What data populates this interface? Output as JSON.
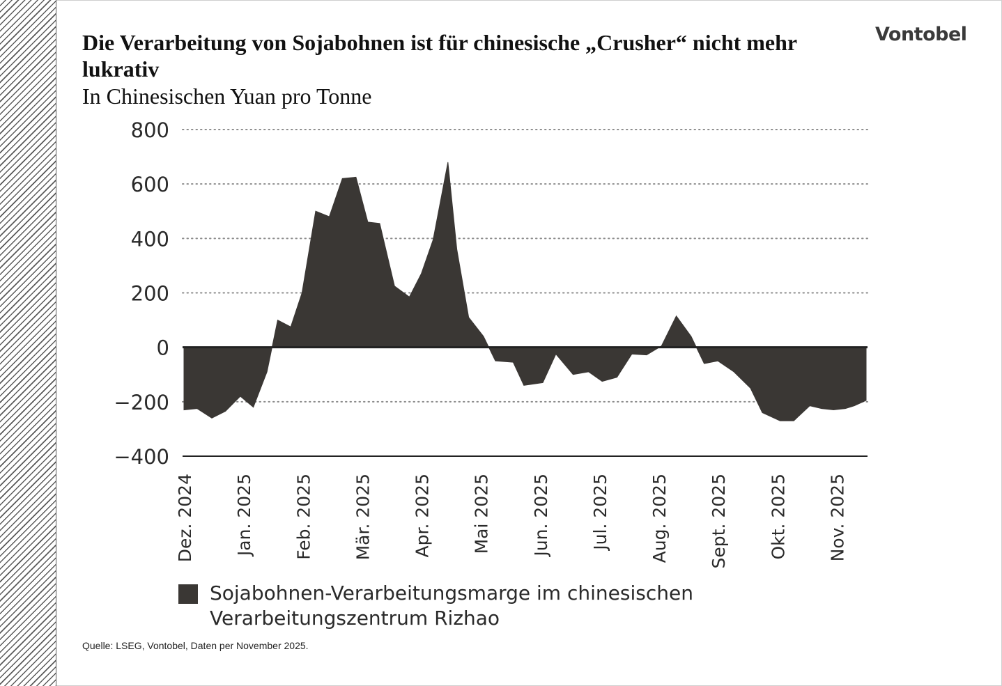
{
  "header": {
    "title": "Die Verarbeitung von Sojabohnen ist für chinesische „Crusher“ nicht mehr lukrativ",
    "subtitle": "In Chinesischen Yuan pro Tonne",
    "logo": "Vontobel"
  },
  "footer": {
    "source": "Quelle: LSEG, Vontobel, Daten per November 2025."
  },
  "colors": {
    "area": "#3a3734",
    "grid": "#8c8c8c",
    "axis": "#222222"
  },
  "chart_data": {
    "type": "area",
    "ylim": [
      -400,
      800
    ],
    "yticks": [
      800,
      600,
      400,
      200,
      0,
      -200,
      -400
    ],
    "ytick_labels": [
      "800",
      "600",
      "400",
      "200",
      "0",
      "−200",
      "−400"
    ],
    "xlim": [
      0,
      11.5
    ],
    "xticks": [
      0,
      1,
      2,
      3,
      4,
      5,
      6,
      7,
      8,
      9,
      10,
      11
    ],
    "xtick_labels": [
      "Dez. 2024",
      "Jan. 2025",
      "Feb. 2025",
      "Mär. 2025",
      "Apr. 2025",
      "Mai 2025",
      "Jun. 2025",
      "Jul. 2025",
      "Aug. 2025",
      "Sept. 2025",
      "Okt. 2025",
      "Nov. 2025"
    ],
    "grid": "horizontal dotted",
    "legend_position": "bottom-left",
    "series": [
      {
        "name": "Sojabohnen-Verarbeitungsmarge im chinesischen Verarbeitungszentrum Rizhao",
        "x": [
          0,
          0.22,
          0.47,
          0.7,
          0.95,
          1.17,
          1.4,
          1.58,
          1.8,
          1.99,
          2.22,
          2.45,
          2.67,
          2.9,
          3.1,
          3.3,
          3.55,
          3.8,
          4.0,
          4.2,
          4.45,
          4.6,
          4.8,
          5.05,
          5.25,
          5.55,
          5.73,
          6.05,
          6.27,
          6.56,
          6.82,
          7.05,
          7.3,
          7.55,
          7.8,
          8.05,
          8.3,
          8.55,
          8.77,
          9.0,
          9.27,
          9.55,
          9.75,
          10.05,
          10.28,
          10.55,
          10.75,
          10.95,
          11.15,
          11.3,
          11.5
        ],
        "values": [
          -230,
          -225,
          -260,
          -235,
          -180,
          -220,
          -90,
          100,
          75,
          200,
          500,
          480,
          620,
          625,
          460,
          455,
          225,
          185,
          270,
          395,
          680,
          360,
          110,
          40,
          -50,
          -55,
          -140,
          -130,
          -25,
          -100,
          -90,
          -125,
          -110,
          -25,
          -28,
          5,
          115,
          40,
          -60,
          -50,
          -90,
          -150,
          -240,
          -270,
          -270,
          -215,
          -225,
          -230,
          -225,
          -215,
          -195
        ]
      }
    ]
  }
}
